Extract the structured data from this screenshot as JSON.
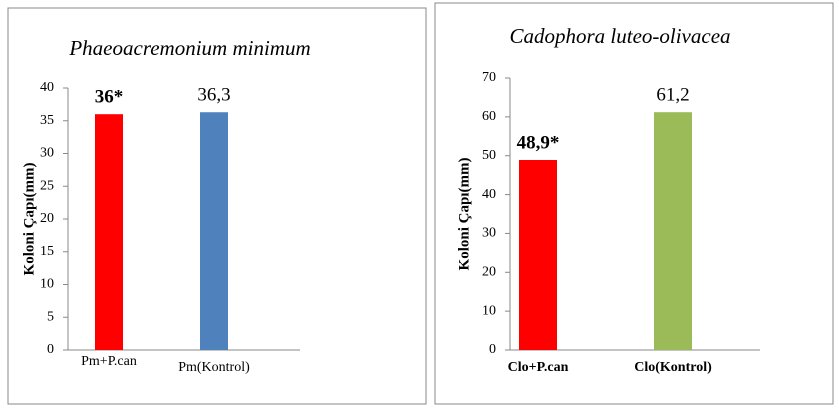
{
  "chart_data": [
    {
      "type": "bar",
      "title": "Phaeoacremonium minimum",
      "y_label": "Koloni Çapı(mm)",
      "categories": [
        "Pm+P.can",
        "Pm(Kontrol)"
      ],
      "values": [
        36,
        36.3
      ],
      "value_labels": [
        "36*",
        "36,3"
      ],
      "colors": [
        "#ff0000",
        "#4f81bd"
      ],
      "ylim": [
        0,
        40
      ],
      "yticks": [
        0,
        5,
        10,
        15,
        20,
        25,
        30,
        35,
        40
      ]
    },
    {
      "type": "bar",
      "title": "Cadophora luteo-olivacea",
      "y_label": "Koloni Çapı(mm)",
      "categories": [
        "Clo+P.can",
        "Clo(Kontrol)"
      ],
      "values": [
        48.9,
        61.2
      ],
      "value_labels": [
        "48,9*",
        "61,2"
      ],
      "colors": [
        "#ff0000",
        "#9bbb59"
      ],
      "ylim": [
        0,
        70
      ],
      "yticks": [
        0,
        10,
        20,
        30,
        40,
        50,
        60,
        70
      ]
    }
  ]
}
